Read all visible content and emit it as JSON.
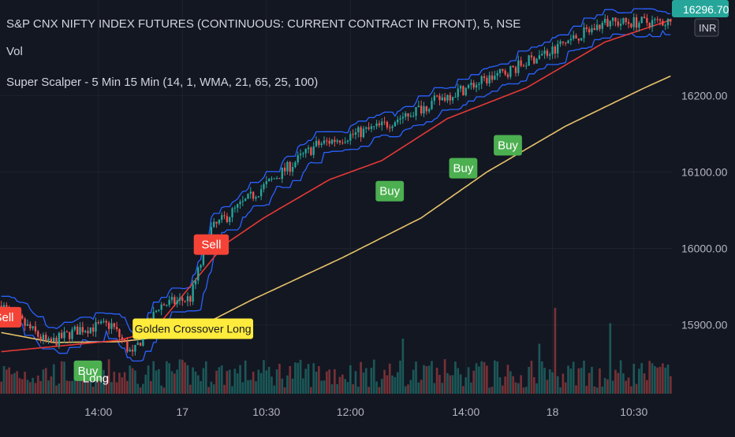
{
  "legend": {
    "title": "S&P CNX NIFTY INDEX FUTURES (CONTINUOUS: CURRENT CONTRACT IN FRONT), 5, NSE",
    "volume": "Vol",
    "study": "Super Scalper - 5 Min 15 Min (14, 1, WMA, 21, 65, 25, 100)"
  },
  "price_badge": "16296.70",
  "currency_badge": "INR",
  "colors": {
    "background": "#131722",
    "up": "#26a69a",
    "down": "#ef5350",
    "band": "#2962ff",
    "ma_fast": "#e53935",
    "ma_slow": "#e8c36a",
    "buy_label": "#4caf50",
    "sell_label": "#f44336",
    "crossover_label": "#ffeb3b",
    "axis_text": "#b2b5be"
  },
  "chart_data": {
    "type": "candlestick",
    "title": "S&P CNX NIFTY INDEX FUTURES (CONTINUOUS: CURRENT CONTRACT IN FRONT), 5, NSE",
    "y_ticks": [
      15900.0,
      16000.0,
      16100.0,
      16200.0
    ],
    "x_ticks": [
      "14:00",
      "17",
      "10:30",
      "12:00",
      "14:00",
      "18",
      "10:30"
    ],
    "ylim": [
      15810,
      16325
    ],
    "last_price": 16296.7,
    "start_price": 15925,
    "candles": 170,
    "price_path": [
      [
        0,
        15925
      ],
      [
        18,
        15875
      ],
      [
        30,
        15895
      ],
      [
        42,
        15900
      ],
      [
        50,
        15860
      ],
      [
        60,
        15925
      ],
      [
        72,
        15935
      ],
      [
        80,
        16025
      ],
      [
        96,
        16070
      ],
      [
        120,
        16135
      ],
      [
        145,
        16160
      ],
      [
        170,
        16200
      ],
      [
        195,
        16235
      ],
      [
        215,
        16270
      ],
      [
        230,
        16295
      ],
      [
        256,
        16296.7
      ]
    ],
    "ma_fast_path": [
      [
        0,
        15865
      ],
      [
        30,
        15875
      ],
      [
        45,
        15880
      ],
      [
        58,
        15892
      ],
      [
        85,
        16005
      ],
      [
        100,
        16040
      ],
      [
        125,
        16090
      ],
      [
        145,
        16115
      ],
      [
        170,
        16170
      ],
      [
        200,
        16210
      ],
      [
        230,
        16270
      ],
      [
        256,
        16300
      ]
    ],
    "ma_slow_path": [
      [
        0,
        15890
      ],
      [
        20,
        15877
      ],
      [
        45,
        15878
      ],
      [
        70,
        15888
      ],
      [
        95,
        15932
      ],
      [
        130,
        15988
      ],
      [
        160,
        16040
      ],
      [
        185,
        16100
      ],
      [
        215,
        16160
      ],
      [
        245,
        16210
      ],
      [
        256,
        16227
      ]
    ],
    "band_offsets": [
      35,
      35
    ],
    "volume_spikes": [
      [
        211,
        90
      ],
      [
        232,
        75
      ],
      [
        153,
        60
      ],
      [
        205,
        55
      ]
    ],
    "labels": [
      {
        "text": "Sell",
        "kind": "sell",
        "index": 1,
        "price": 15910
      },
      {
        "text": "Buy",
        "kind": "buy",
        "index": 33,
        "price": 15840
      },
      {
        "text": "Long",
        "kind": "long",
        "index": 36,
        "price": 15830
      },
      {
        "text": "Sell",
        "kind": "sell",
        "index": 80,
        "price": 16005
      },
      {
        "text": "Golden Crossover Long",
        "kind": "crossover",
        "index": 73,
        "price": 15895
      },
      {
        "text": "Buy",
        "kind": "buy",
        "index": 148,
        "price": 16075
      },
      {
        "text": "Buy",
        "kind": "buy",
        "index": 176,
        "price": 16105
      },
      {
        "text": "Buy",
        "kind": "buy",
        "index": 193,
        "price": 16135
      }
    ]
  }
}
